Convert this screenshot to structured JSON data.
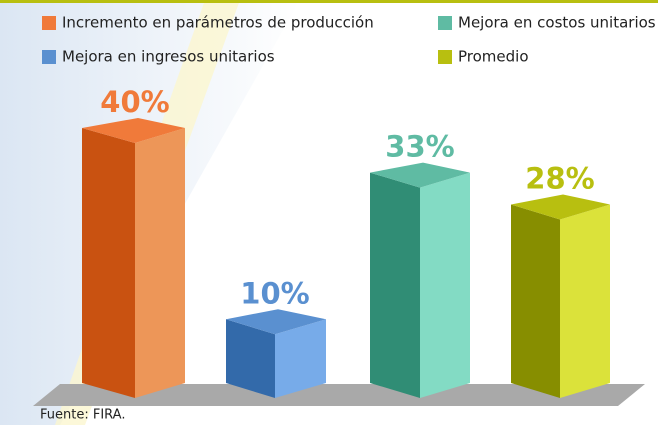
{
  "chart_data": {
    "type": "bar3d",
    "categories": [
      "Incremento en parámetros de producción",
      "Mejora en ingresos unitarios",
      "Mejora en costos unitarios",
      "Promedio"
    ],
    "values": [
      40,
      10,
      33,
      28
    ],
    "value_labels": [
      "40%",
      "10%",
      "33%",
      "28%"
    ],
    "colors": [
      "#f07a3a",
      "#5a90d0",
      "#5fbba3",
      "#b8bf10"
    ],
    "source": "Fuente: FIRA."
  }
}
